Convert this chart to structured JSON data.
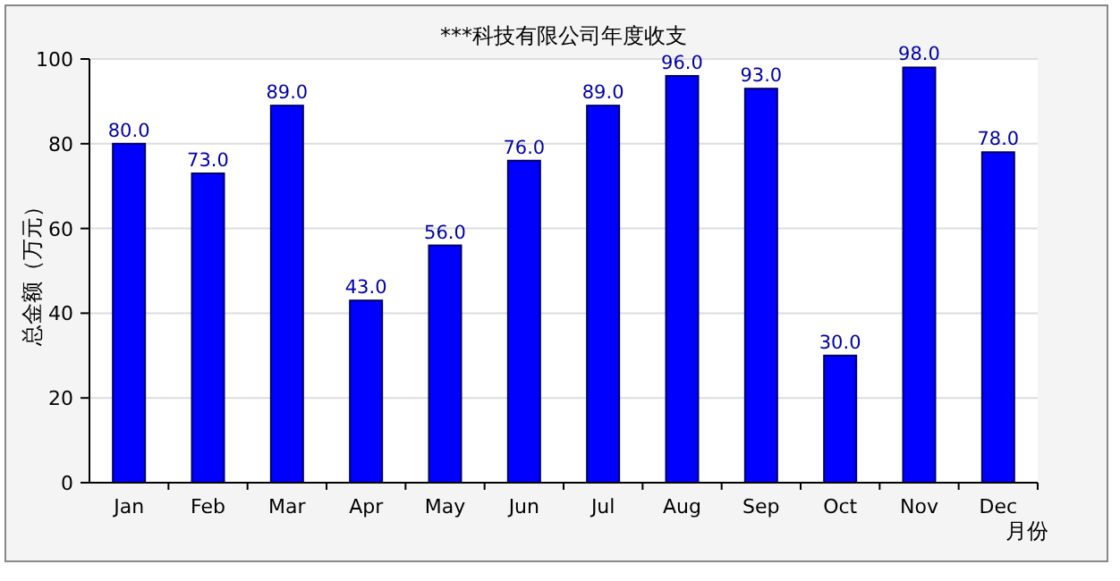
{
  "chart_data": {
    "type": "bar",
    "title": "***科技有限公司年度收支",
    "xlabel": "月份",
    "ylabel": "总金额（万元）",
    "categories": [
      "Jan",
      "Feb",
      "Mar",
      "Apr",
      "May",
      "Jun",
      "Jul",
      "Aug",
      "Sep",
      "Oct",
      "Nov",
      "Dec"
    ],
    "values": [
      80,
      73,
      89,
      43,
      56,
      76,
      89,
      96,
      93,
      30,
      98,
      78
    ],
    "value_labels": [
      "80.0",
      "73.0",
      "89.0",
      "43.0",
      "56.0",
      "76.0",
      "89.0",
      "96.0",
      "93.0",
      "30.0",
      "98.0",
      "78.0"
    ],
    "color": "#0000ff",
    "ylim": [
      0,
      100
    ],
    "yticks": [
      0,
      20,
      40,
      60,
      80,
      100
    ],
    "grid": "y"
  }
}
